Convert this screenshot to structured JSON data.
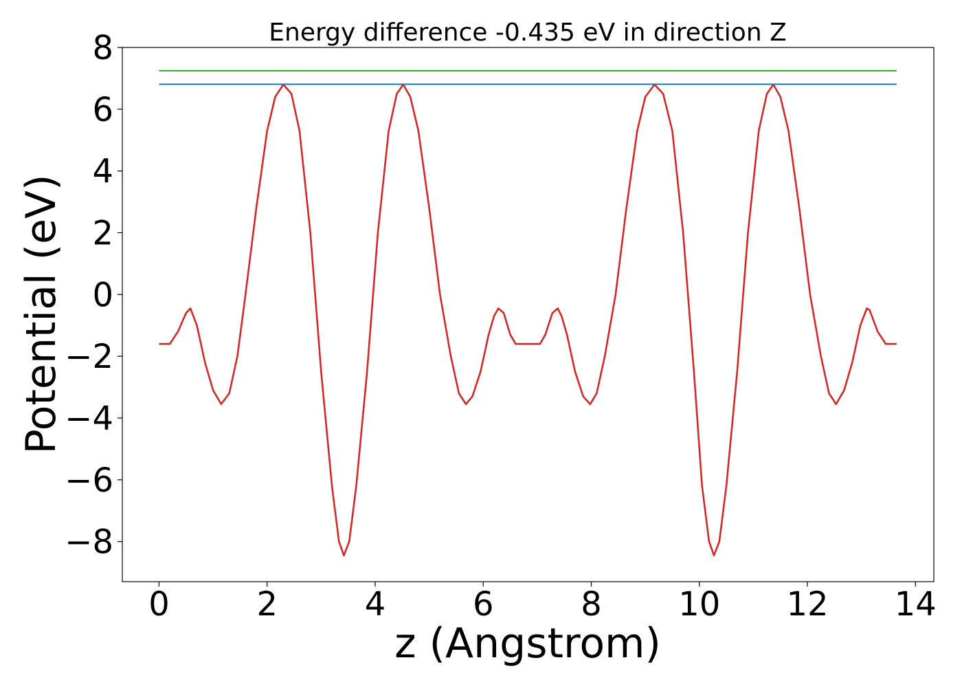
{
  "chart_data": {
    "type": "line",
    "title": "Energy difference -0.435 eV in direction Z",
    "xlabel": "z (Angstrom)",
    "ylabel": "Potential (eV)",
    "xlim": [
      -0.68,
      14.34
    ],
    "ylim": [
      -9.3,
      8.0
    ],
    "xticks": [
      0,
      2,
      4,
      6,
      8,
      10,
      12,
      14
    ],
    "yticks": [
      -8,
      -6,
      -4,
      -2,
      0,
      2,
      4,
      6,
      8
    ],
    "xtick_labels": [
      "0",
      "2",
      "4",
      "6",
      "8",
      "10",
      "12",
      "14"
    ],
    "ytick_labels": [
      "−8",
      "−6",
      "−4",
      "−2",
      "0",
      "2",
      "4",
      "6",
      "8"
    ],
    "grid": false,
    "legend": "none",
    "series": [
      {
        "color": "#d62728",
        "x": [
          0.0,
          0.2,
          0.35,
          0.5,
          0.58,
          0.7,
          0.85,
          1.0,
          1.15,
          1.3,
          1.45,
          1.6,
          1.8,
          2.0,
          2.15,
          2.3,
          2.45,
          2.6,
          2.8,
          3.0,
          3.2,
          3.33,
          3.42,
          3.52,
          3.65,
          3.85,
          4.05,
          4.25,
          4.4,
          4.52,
          4.65,
          4.8,
          5.0,
          5.2,
          5.4,
          5.55,
          5.68,
          5.8,
          5.95,
          6.1,
          6.2,
          6.28,
          6.38,
          6.5,
          6.6,
          6.83,
          7.05,
          7.15,
          7.28,
          7.38,
          7.45,
          7.55,
          7.7,
          7.85,
          7.98,
          8.1,
          8.25,
          8.45,
          8.65,
          8.85,
          9.0,
          9.17,
          9.33,
          9.5,
          9.7,
          9.9,
          10.05,
          10.18,
          10.27,
          10.37,
          10.5,
          10.7,
          10.9,
          11.1,
          11.25,
          11.37,
          11.5,
          11.65,
          11.85,
          12.05,
          12.25,
          12.4,
          12.53,
          12.68,
          12.83,
          12.98,
          13.1,
          13.15,
          13.3,
          13.45,
          13.55,
          13.65
        ],
        "y": [
          -1.6,
          -1.6,
          -1.2,
          -0.6,
          -0.45,
          -1.0,
          -2.2,
          -3.1,
          -3.55,
          -3.2,
          -2.0,
          0.0,
          2.8,
          5.3,
          6.4,
          6.8,
          6.5,
          5.3,
          2.0,
          -2.5,
          -6.2,
          -8.0,
          -8.45,
          -8.0,
          -6.2,
          -2.5,
          2.0,
          5.3,
          6.5,
          6.8,
          6.4,
          5.3,
          2.8,
          0.0,
          -2.0,
          -3.2,
          -3.55,
          -3.3,
          -2.5,
          -1.3,
          -0.7,
          -0.45,
          -0.6,
          -1.3,
          -1.6,
          -1.6,
          -1.6,
          -1.3,
          -0.6,
          -0.45,
          -0.7,
          -1.3,
          -2.5,
          -3.3,
          -3.55,
          -3.2,
          -2.0,
          0.0,
          2.8,
          5.3,
          6.4,
          6.8,
          6.5,
          5.3,
          2.0,
          -2.5,
          -6.2,
          -8.0,
          -8.45,
          -8.0,
          -6.2,
          -2.5,
          2.0,
          5.3,
          6.5,
          6.8,
          6.4,
          5.3,
          2.8,
          0.0,
          -2.0,
          -3.2,
          -3.55,
          -3.1,
          -2.2,
          -1.0,
          -0.45,
          -0.5,
          -1.2,
          -1.6,
          -1.6,
          -1.6
        ]
      },
      {
        "color": "#1f77b4",
        "x": [
          0.0,
          13.65
        ],
        "y": [
          6.81,
          6.81
        ]
      },
      {
        "color": "#2ca02c",
        "x": [
          0.0,
          13.65
        ],
        "y": [
          7.245,
          7.245
        ]
      }
    ]
  }
}
